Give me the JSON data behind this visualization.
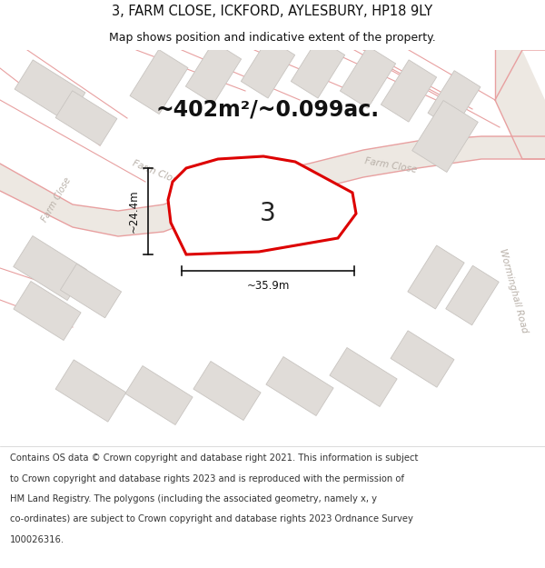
{
  "title": "3, FARM CLOSE, ICKFORD, AYLESBURY, HP18 9LY",
  "subtitle": "Map shows position and indicative extent of the property.",
  "area_text": "~402m²/~0.099ac.",
  "plot_number": "3",
  "dim_width": "~35.9m",
  "dim_height": "~24.4m",
  "map_bg": "#f7f5f2",
  "road_fill": "#ede8e2",
  "road_edge_pink": "#e8a0a0",
  "building_fill": "#e0dcd8",
  "building_edge": "#c8c4c0",
  "plot_fill": "#ffffff",
  "plot_edge": "#dd0000",
  "road_label_color": "#b8b0a8",
  "dim_color": "#111111",
  "footer_lines": [
    "Contains OS data © Crown copyright and database right 2021. This information is subject",
    "to Crown copyright and database rights 2023 and is reproduced with the permission of",
    "HM Land Registry. The polygons (including the associated geometry, namely x, y",
    "co-ordinates) are subject to Crown copyright and database rights 2023 Ordnance Survey",
    "100026316."
  ],
  "title_fontsize": 10.5,
  "subtitle_fontsize": 9,
  "area_fontsize": 17,
  "plot_num_fontsize": 20,
  "road_label_fontsize": 8,
  "footer_fontsize": 7.2,
  "worminghall_label_fontsize": 7.5,
  "farm_close_label_fontsize": 7.5
}
